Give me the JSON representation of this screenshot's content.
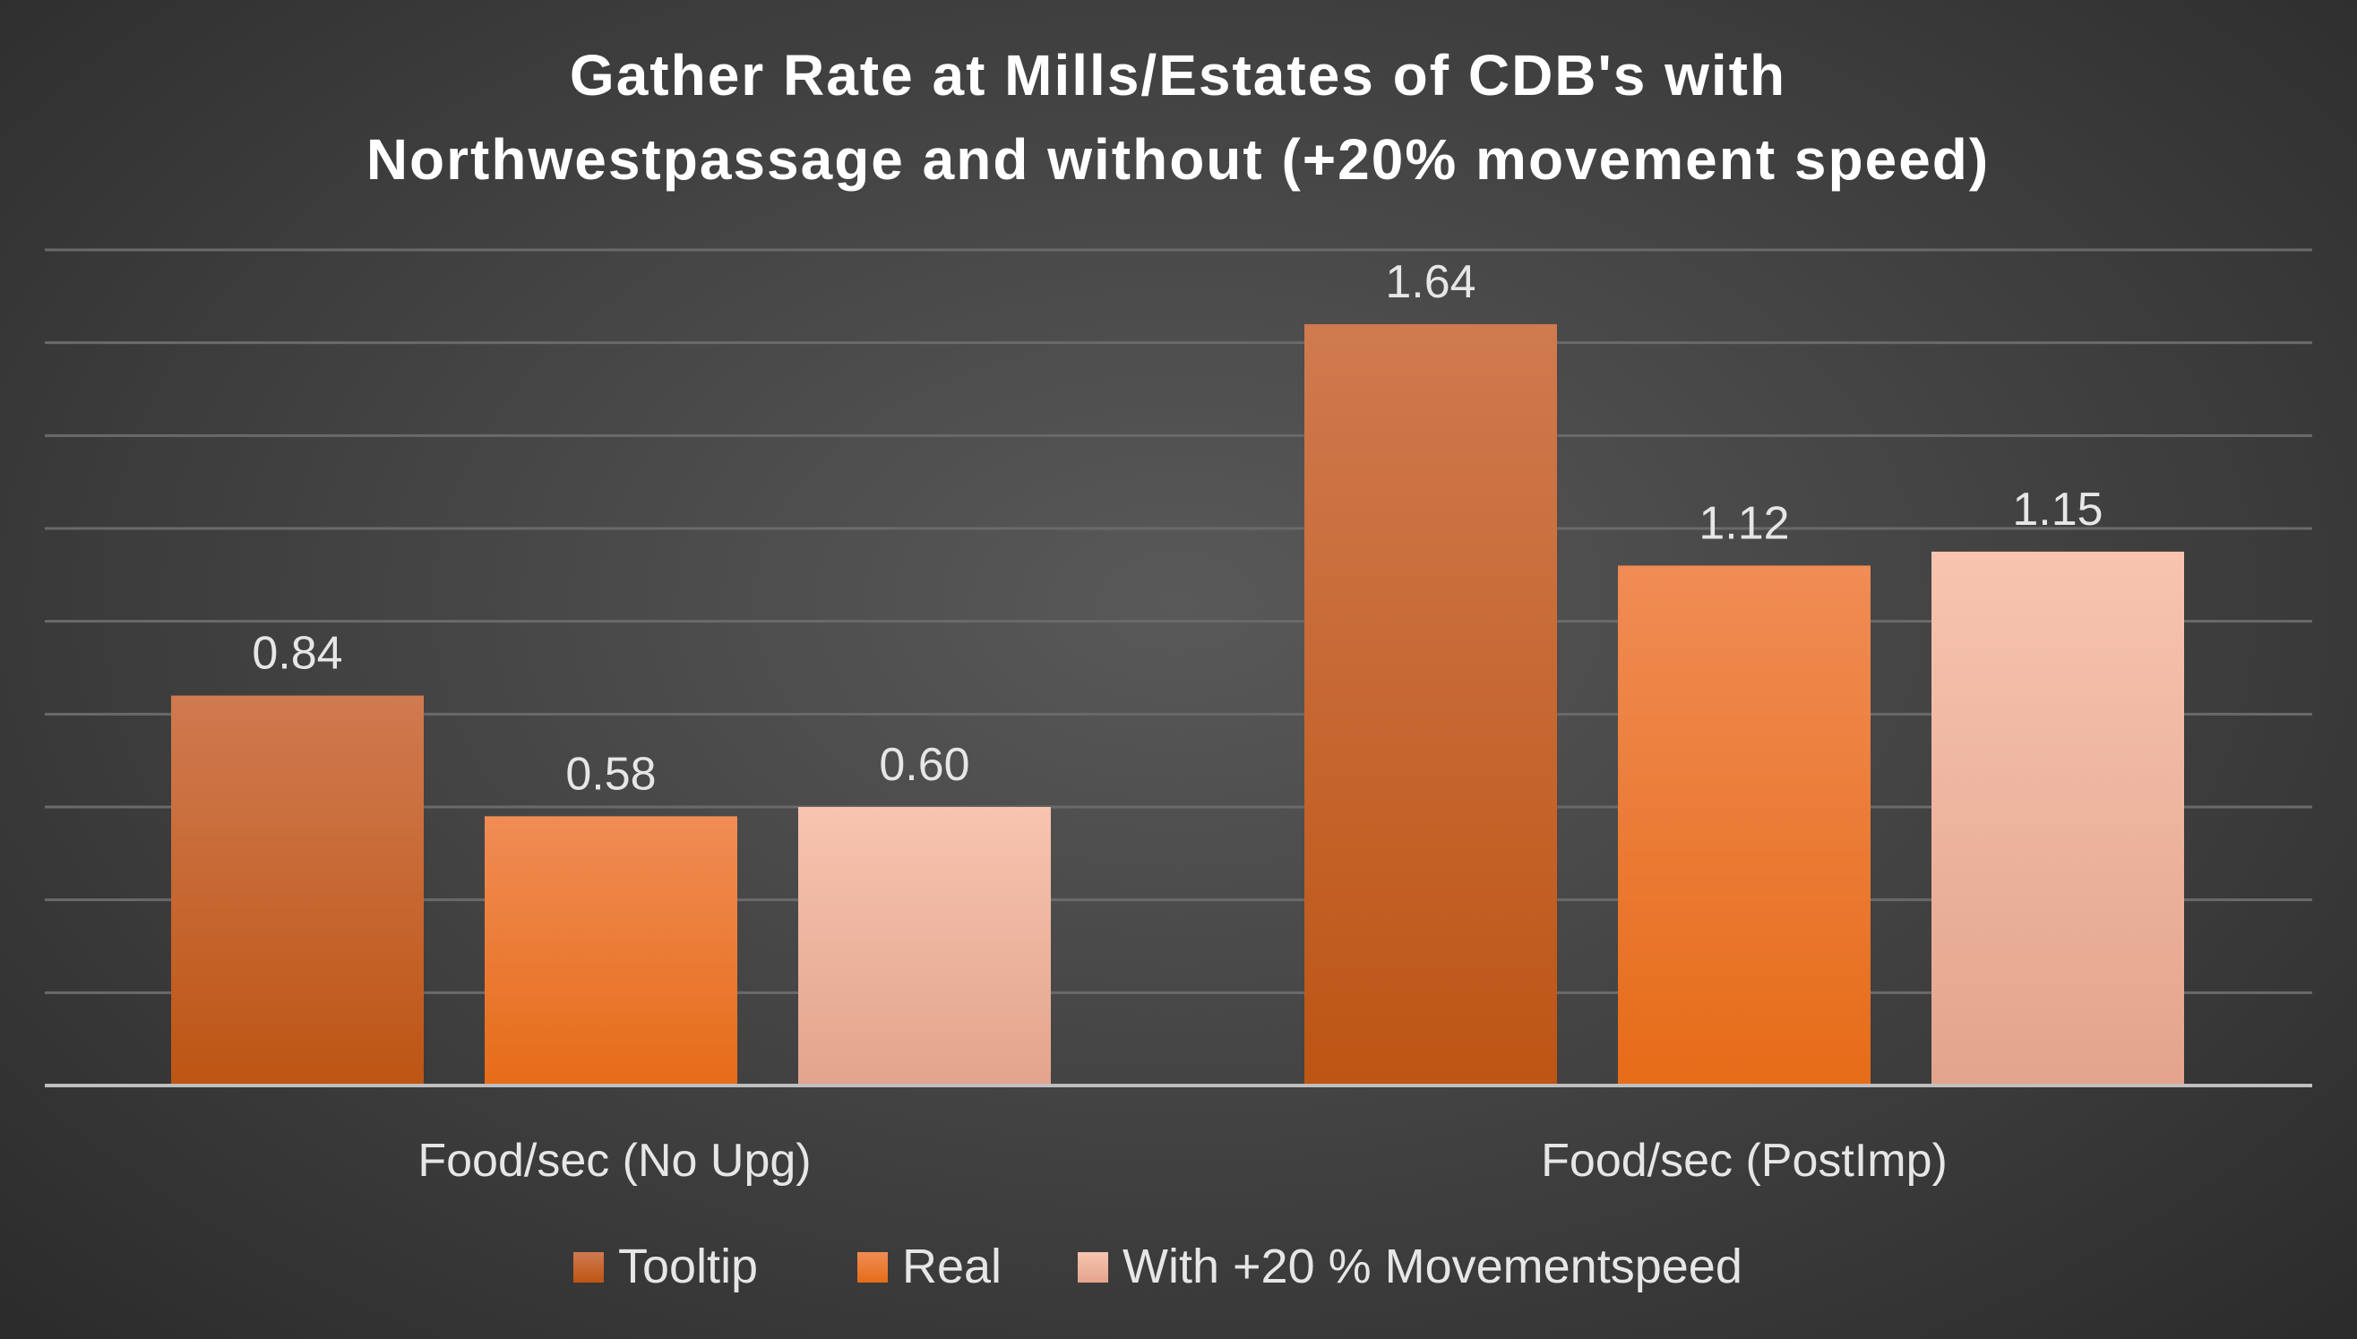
{
  "chart_data": {
    "type": "bar",
    "title_lines": [
      "Gather Rate at Mills/Estates of CDB's with",
      "Northwestpassage and without (+20% movement speed)"
    ],
    "categories": [
      "Food/sec (No Upg)",
      "Food/sec (PostImp)"
    ],
    "series": [
      {
        "name": "Tooltip",
        "values": [
          0.84,
          1.64
        ],
        "labels": [
          "0.84",
          "1.64"
        ],
        "color_top": "#d07a50",
        "color_bottom": "#bd5514"
      },
      {
        "name": "Real",
        "values": [
          0.58,
          1.12
        ],
        "labels": [
          "0.58",
          "1.12"
        ],
        "color_top": "#f08c55",
        "color_bottom": "#e66c18"
      },
      {
        "name": "With +20 % Movementspeed",
        "values": [
          0.6,
          1.15
        ],
        "labels": [
          "0.60",
          "1.15"
        ],
        "color_top": "#f7c4b0",
        "color_bottom": "#e3a48c"
      }
    ],
    "xlabel": "",
    "ylabel": "",
    "ylim": [
      0,
      1.8
    ],
    "grid_step": 0.2,
    "grid": true,
    "legend": "bottom"
  }
}
